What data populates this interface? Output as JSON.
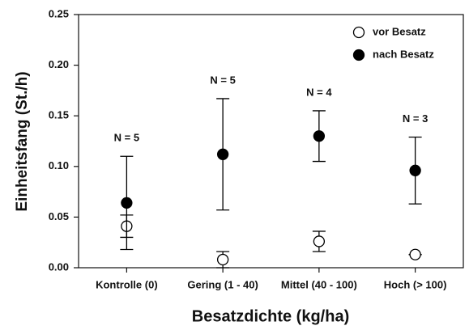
{
  "chart_data": {
    "type": "errorbar",
    "categories": [
      "Kontrolle (0)",
      "Gering (1 - 40)",
      "Mittel (40 - 100)",
      "Hoch (> 100)"
    ],
    "series": [
      {
        "name": "vor Besatz",
        "color": "#000000",
        "filled": false,
        "values": [
          0.041,
          0.008,
          0.026,
          0.013
        ],
        "errors": [
          0.011,
          0.008,
          0.01,
          0
        ]
      },
      {
        "name": "nach Besatz",
        "color": "#000000",
        "filled": true,
        "values": [
          0.064,
          0.112,
          0.13,
          0.096
        ],
        "errors": [
          0.046,
          0.055,
          0.025,
          0.033
        ]
      }
    ],
    "annotations": [
      "N = 5",
      "N = 5",
      "N = 4",
      "N = 3"
    ],
    "xlabel": "Besatzdichte (kg/ha)",
    "ylabel": "Einheitsfang (St./h)",
    "ylim": [
      0,
      0.25
    ],
    "yticks": [
      {
        "value": 0,
        "label": "0.00"
      },
      0.05,
      {
        "value": 0.1,
        "label": "0.10"
      },
      0.15,
      {
        "value": 0.2,
        "label": "0.20"
      },
      0.25
    ],
    "legend": "upper right"
  }
}
